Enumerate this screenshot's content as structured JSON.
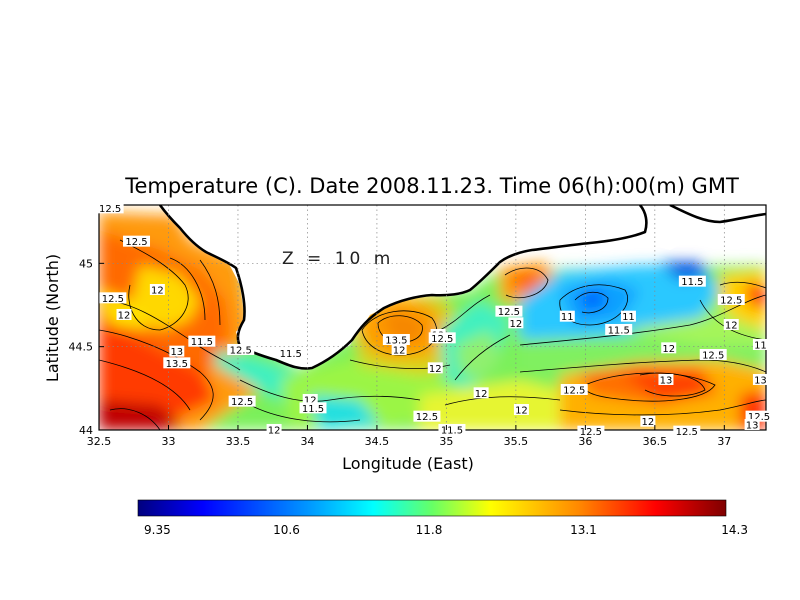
{
  "title": "Temperature (C). Date 2008.11.23. Time 06(h):00(m) GMT",
  "depth_label": "Z = 10 m",
  "x_axis": {
    "label": "Longitude (East)",
    "ticks": [
      "32.5",
      "33",
      "33.5",
      "34",
      "34.5",
      "35",
      "35.5",
      "36",
      "36.5",
      "37"
    ],
    "range": [
      32.5,
      37.3
    ]
  },
  "y_axis": {
    "label": "Latitude (North)",
    "ticks": [
      "44",
      "44.5",
      "45"
    ],
    "range": [
      44.0,
      45.35
    ]
  },
  "colorbar": {
    "ticks": [
      "9.35",
      "10.6",
      "11.8",
      "13.1",
      "14.3"
    ],
    "min": 9.35,
    "max": 14.3
  },
  "colors": {
    "cold": "#00007f",
    "cool": "#00b0ff",
    "mid": "#22ee88",
    "warm": "#ffff00",
    "hot": "#ff6600",
    "hottest": "#7f0000"
  },
  "contour_labels": [
    {
      "text": "12.5",
      "lon": 32.58,
      "lat": 45.33
    },
    {
      "text": "12.5",
      "lon": 32.77,
      "lat": 45.13
    },
    {
      "text": "12",
      "lon": 32.92,
      "lat": 44.84
    },
    {
      "text": "12.5",
      "lon": 32.6,
      "lat": 44.79
    },
    {
      "text": "12",
      "lon": 32.68,
      "lat": 44.69
    },
    {
      "text": "13",
      "lon": 33.06,
      "lat": 44.47
    },
    {
      "text": "13.5",
      "lon": 33.06,
      "lat": 44.4
    },
    {
      "text": "11.5",
      "lon": 33.24,
      "lat": 44.53
    },
    {
      "text": "12.5",
      "lon": 33.52,
      "lat": 44.48
    },
    {
      "text": "11.5",
      "lon": 33.88,
      "lat": 44.46
    },
    {
      "text": "12.5",
      "lon": 33.53,
      "lat": 44.17
    },
    {
      "text": "12",
      "lon": 34.02,
      "lat": 44.18
    },
    {
      "text": "11.5",
      "lon": 34.04,
      "lat": 44.13
    },
    {
      "text": "12",
      "lon": 33.76,
      "lat": 44.0
    },
    {
      "text": "13.5",
      "lon": 34.64,
      "lat": 44.54
    },
    {
      "text": "13",
      "lon": 34.94,
      "lat": 44.57
    },
    {
      "text": "12.5",
      "lon": 34.97,
      "lat": 44.55
    },
    {
      "text": "12",
      "lon": 34.66,
      "lat": 44.48
    },
    {
      "text": "12",
      "lon": 34.92,
      "lat": 44.37
    },
    {
      "text": "12.5",
      "lon": 34.86,
      "lat": 44.08
    },
    {
      "text": "11.5",
      "lon": 35.04,
      "lat": 44.0
    },
    {
      "text": "12",
      "lon": 35.25,
      "lat": 44.22
    },
    {
      "text": "12",
      "lon": 35.54,
      "lat": 44.12
    },
    {
      "text": "12.5",
      "lon": 35.45,
      "lat": 44.71
    },
    {
      "text": "12",
      "lon": 35.5,
      "lat": 44.64
    },
    {
      "text": "11",
      "lon": 35.87,
      "lat": 44.68
    },
    {
      "text": "11",
      "lon": 36.31,
      "lat": 44.68
    },
    {
      "text": "11.5",
      "lon": 36.24,
      "lat": 44.6
    },
    {
      "text": "11.5",
      "lon": 36.77,
      "lat": 44.89
    },
    {
      "text": "12",
      "lon": 36.6,
      "lat": 44.49
    },
    {
      "text": "12.5",
      "lon": 36.92,
      "lat": 44.45
    },
    {
      "text": "12.5",
      "lon": 37.05,
      "lat": 44.78
    },
    {
      "text": "12",
      "lon": 37.05,
      "lat": 44.63
    },
    {
      "text": "11",
      "lon": 37.26,
      "lat": 44.51
    },
    {
      "text": "12.5",
      "lon": 35.92,
      "lat": 44.24
    },
    {
      "text": "13",
      "lon": 36.58,
      "lat": 44.3
    },
    {
      "text": "12",
      "lon": 36.45,
      "lat": 44.05
    },
    {
      "text": "12.5",
      "lon": 36.73,
      "lat": 43.99
    },
    {
      "text": "13",
      "lon": 37.26,
      "lat": 44.3
    },
    {
      "text": "12.5",
      "lon": 37.25,
      "lat": 44.08
    },
    {
      "text": "13",
      "lon": 37.2,
      "lat": 44.03
    },
    {
      "text": "12.5",
      "lon": 36.04,
      "lat": 43.99
    }
  ]
}
